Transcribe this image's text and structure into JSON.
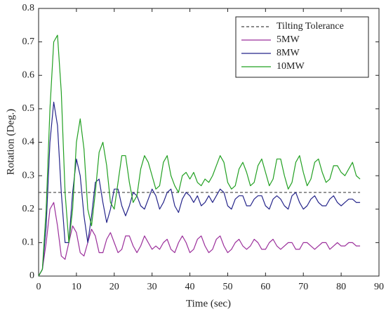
{
  "chart_data": {
    "type": "line",
    "xlabel": "Time (sec)",
    "ylabel": "Rotation (Deg.)",
    "x": [
      0,
      1,
      2,
      3,
      4,
      5,
      6,
      7,
      8,
      9,
      10,
      11,
      12,
      13,
      14,
      15,
      16,
      17,
      18,
      19,
      20,
      21,
      22,
      23,
      24,
      25,
      26,
      27,
      28,
      29,
      30,
      31,
      32,
      33,
      34,
      35,
      36,
      37,
      38,
      39,
      40,
      41,
      42,
      43,
      44,
      45,
      46,
      47,
      48,
      49,
      50,
      51,
      52,
      53,
      54,
      55,
      56,
      57,
      58,
      59,
      60,
      61,
      62,
      63,
      64,
      65,
      66,
      67,
      68,
      69,
      70,
      71,
      72,
      73,
      74,
      75,
      76,
      77,
      78,
      79,
      80,
      81,
      82,
      83,
      84,
      85
    ],
    "series": [
      {
        "name": "Tilting Tolerance",
        "color": "#444444",
        "dashed": true,
        "x": [
          0,
          85
        ],
        "values": [
          0.25,
          0.25
        ]
      },
      {
        "name": "5MW",
        "color": "#9b2f9b",
        "values": [
          0,
          0.02,
          0.1,
          0.2,
          0.22,
          0.15,
          0.06,
          0.05,
          0.1,
          0.15,
          0.13,
          0.07,
          0.06,
          0.1,
          0.14,
          0.12,
          0.07,
          0.07,
          0.11,
          0.13,
          0.1,
          0.07,
          0.08,
          0.12,
          0.12,
          0.09,
          0.07,
          0.09,
          0.12,
          0.1,
          0.08,
          0.09,
          0.08,
          0.1,
          0.11,
          0.08,
          0.07,
          0.1,
          0.12,
          0.1,
          0.07,
          0.08,
          0.11,
          0.12,
          0.09,
          0.07,
          0.08,
          0.11,
          0.12,
          0.09,
          0.07,
          0.08,
          0.1,
          0.11,
          0.09,
          0.08,
          0.09,
          0.11,
          0.1,
          0.08,
          0.08,
          0.1,
          0.11,
          0.09,
          0.08,
          0.09,
          0.1,
          0.1,
          0.08,
          0.08,
          0.1,
          0.1,
          0.09,
          0.08,
          0.09,
          0.1,
          0.1,
          0.08,
          0.09,
          0.1,
          0.09,
          0.09,
          0.1,
          0.1,
          0.09,
          0.09
        ]
      },
      {
        "name": "8MW",
        "color": "#25258a",
        "values": [
          0,
          0.02,
          0.15,
          0.4,
          0.52,
          0.45,
          0.25,
          0.1,
          0.1,
          0.25,
          0.35,
          0.3,
          0.18,
          0.1,
          0.18,
          0.28,
          0.29,
          0.22,
          0.16,
          0.2,
          0.26,
          0.26,
          0.21,
          0.18,
          0.21,
          0.25,
          0.24,
          0.21,
          0.2,
          0.23,
          0.26,
          0.24,
          0.2,
          0.22,
          0.25,
          0.26,
          0.21,
          0.19,
          0.23,
          0.25,
          0.24,
          0.22,
          0.24,
          0.21,
          0.22,
          0.24,
          0.22,
          0.24,
          0.26,
          0.25,
          0.21,
          0.2,
          0.23,
          0.24,
          0.24,
          0.21,
          0.21,
          0.23,
          0.24,
          0.24,
          0.21,
          0.2,
          0.23,
          0.24,
          0.23,
          0.21,
          0.2,
          0.24,
          0.25,
          0.22,
          0.2,
          0.21,
          0.23,
          0.24,
          0.22,
          0.21,
          0.21,
          0.23,
          0.24,
          0.22,
          0.21,
          0.22,
          0.23,
          0.23,
          0.22,
          0.22
        ]
      },
      {
        "name": "10MW",
        "color": "#22a022",
        "values": [
          0,
          0.02,
          0.2,
          0.5,
          0.7,
          0.72,
          0.55,
          0.25,
          0.1,
          0.2,
          0.4,
          0.47,
          0.38,
          0.2,
          0.15,
          0.25,
          0.37,
          0.4,
          0.33,
          0.22,
          0.2,
          0.28,
          0.36,
          0.36,
          0.28,
          0.22,
          0.24,
          0.32,
          0.36,
          0.34,
          0.3,
          0.26,
          0.27,
          0.34,
          0.36,
          0.3,
          0.27,
          0.25,
          0.3,
          0.31,
          0.29,
          0.31,
          0.28,
          0.27,
          0.29,
          0.28,
          0.3,
          0.33,
          0.36,
          0.34,
          0.28,
          0.26,
          0.27,
          0.32,
          0.34,
          0.31,
          0.27,
          0.28,
          0.33,
          0.35,
          0.31,
          0.27,
          0.29,
          0.35,
          0.35,
          0.3,
          0.26,
          0.28,
          0.34,
          0.36,
          0.31,
          0.27,
          0.29,
          0.34,
          0.35,
          0.31,
          0.28,
          0.29,
          0.33,
          0.33,
          0.31,
          0.3,
          0.32,
          0.34,
          0.3,
          0.29
        ]
      }
    ],
    "xlim": [
      0,
      90
    ],
    "xticks": [
      0,
      10,
      20,
      30,
      40,
      50,
      60,
      70,
      80,
      90
    ],
    "ylim": [
      0,
      0.8
    ],
    "yticks": [
      0,
      0.1,
      0.2,
      0.3,
      0.4,
      0.5,
      0.6,
      0.7,
      0.8
    ],
    "legend": "top-right",
    "grid": false
  }
}
